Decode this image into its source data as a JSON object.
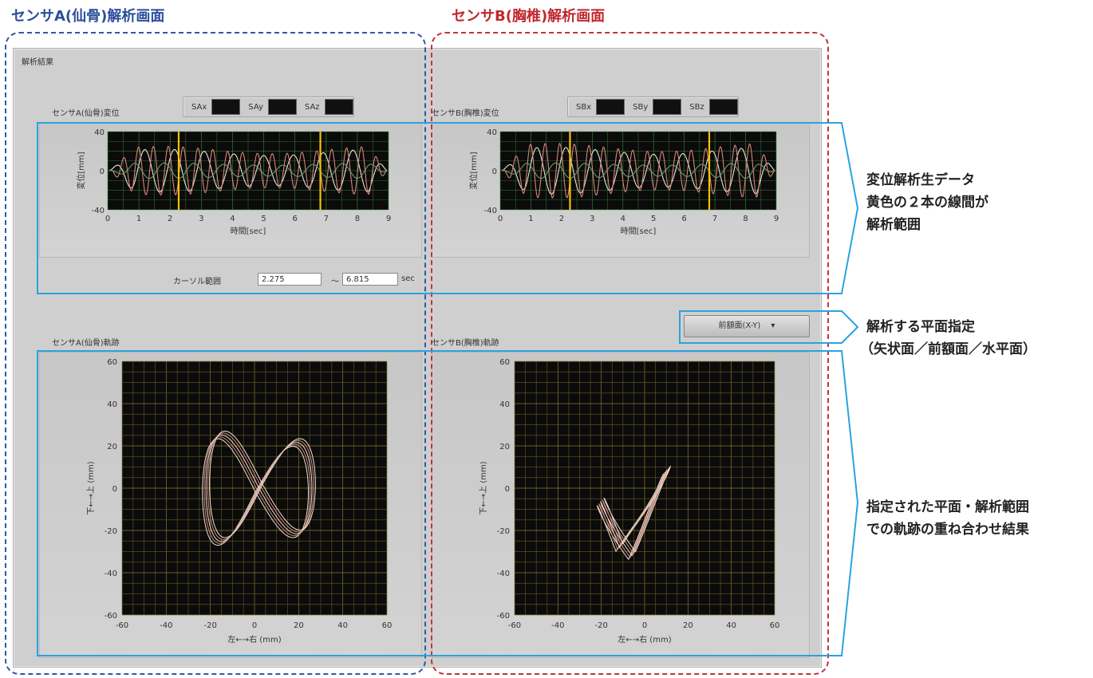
{
  "headings": {
    "sensor_a": "センサA(仙骨)解析画面",
    "sensor_b": "センサB(胸椎)解析画面"
  },
  "app": {
    "group_label": "解析結果",
    "sensor_a": {
      "displacement_title": "センサA(仙骨)変位",
      "trajectory_title": "センサA(仙骨)軌跡",
      "legend": [
        "SAx",
        "SAy",
        "SAz"
      ]
    },
    "sensor_b": {
      "displacement_title": "センサB(胸椎)変位",
      "trajectory_title": "センサB(胸椎)軌跡",
      "legend": [
        "SBx",
        "SBy",
        "SBz"
      ]
    },
    "cursor": {
      "label": "カーソル範囲",
      "from": "2.275",
      "separator": "〜",
      "to": "6.815",
      "unit": "sec"
    },
    "plane_select": {
      "value": "前額面(X-Y)",
      "arrow": "▾"
    }
  },
  "annotations": {
    "displacement": [
      "変位解析生データ",
      "黄色の２本の線間が",
      "解析範囲"
    ],
    "plane": [
      "解析する平面指定",
      "（矢状面／前額面／水平面）"
    ],
    "trajectory": [
      "指定された平面・解析範囲",
      "での軌跡の重ね合わせ結果"
    ]
  },
  "colors": {
    "blue_dash": "#2e5aa4",
    "red_dash": "#c63238",
    "callout_blue": "#29a3e0",
    "cursor_yellow": "#f2c200",
    "trace_red": "#d9847a",
    "trace_green": "#6a9f6a",
    "trace_white": "#e9e4d6"
  },
  "chart_data": [
    {
      "id": "displacement-a",
      "type": "line",
      "xlabel": "時間[sec]",
      "ylabel": "変位[mm]",
      "xlim": [
        0,
        9
      ],
      "ylim": [
        -40,
        40
      ],
      "xticks": [
        "0",
        "1",
        "2",
        "3",
        "4",
        "5",
        "6",
        "7",
        "8",
        "9"
      ],
      "yticks": [
        "40",
        "0",
        "-40"
      ],
      "cursors": [
        2.275,
        6.815
      ],
      "series": [
        {
          "name": "SAx",
          "amplitude": 22,
          "freq": 1.05,
          "color": "#e9e4d6"
        },
        {
          "name": "SAy",
          "amplitude": 25,
          "freq": 2.1,
          "color": "#d9847a"
        },
        {
          "name": "SAz",
          "amplitude": 8,
          "freq": 1.05,
          "color": "#6a9f6a"
        }
      ]
    },
    {
      "id": "displacement-b",
      "type": "line",
      "xlabel": "時間[sec]",
      "ylabel": "変位[mm]",
      "xlim": [
        0,
        9
      ],
      "ylim": [
        -40,
        40
      ],
      "xticks": [
        "0",
        "1",
        "2",
        "3",
        "4",
        "5",
        "6",
        "7",
        "8",
        "9"
      ],
      "yticks": [
        "40",
        "0",
        "-40"
      ],
      "cursors": [
        2.275,
        6.815
      ],
      "series": [
        {
          "name": "SBx",
          "amplitude": 24,
          "freq": 1.05,
          "color": "#e9e4d6"
        },
        {
          "name": "SBy",
          "amplitude": 28,
          "freq": 2.1,
          "color": "#d9847a"
        },
        {
          "name": "SBz",
          "amplitude": 8,
          "freq": 1.05,
          "color": "#6a9f6a"
        }
      ]
    },
    {
      "id": "trajectory-a",
      "type": "line",
      "xlabel": "左←→右 (mm)",
      "ylabel": "下←→上 (mm)",
      "xlim": [
        -60,
        60
      ],
      "ylim": [
        -60,
        60
      ],
      "xticks": [
        "-60",
        "-40",
        "-20",
        "0",
        "20",
        "40",
        "60"
      ],
      "yticks": [
        "60",
        "40",
        "20",
        "0",
        "-20",
        "-40",
        "-60"
      ],
      "shape": "figure-eight",
      "loops": 5
    },
    {
      "id": "trajectory-b",
      "type": "line",
      "xlabel": "左←→右 (mm)",
      "ylabel": "下←→上 (mm)",
      "xlim": [
        -60,
        60
      ],
      "ylim": [
        -60,
        60
      ],
      "xticks": [
        "-60",
        "-40",
        "-20",
        "0",
        "20",
        "40",
        "60"
      ],
      "yticks": [
        "60",
        "40",
        "20",
        "0",
        "-20",
        "-40",
        "-60"
      ],
      "shape": "v-shape",
      "loops": 5
    }
  ]
}
